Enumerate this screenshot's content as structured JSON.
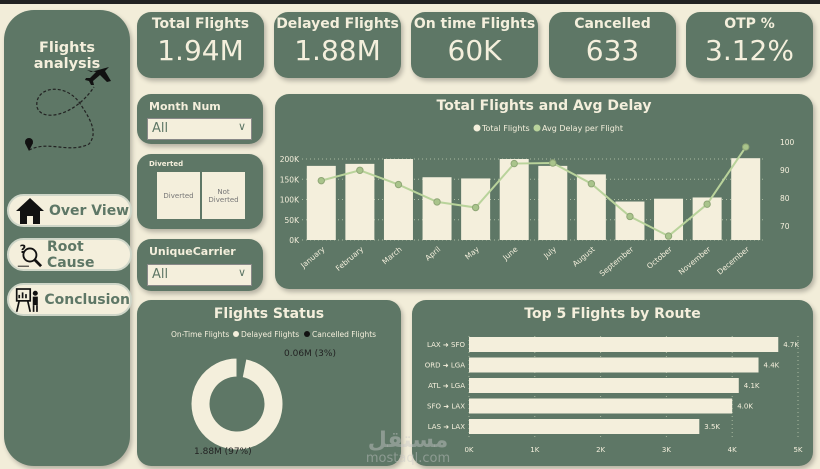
{
  "sidebar": {
    "title": "Flights analysis",
    "nav": [
      {
        "label": "Over View",
        "icon": "home-icon"
      },
      {
        "label": "Root Cause",
        "icon": "investigate-icon"
      },
      {
        "label": "Conclusion",
        "icon": "presentation-icon"
      }
    ]
  },
  "kpis": [
    {
      "label": "Total Flights",
      "value": "1.94M"
    },
    {
      "label": "Delayed Flights",
      "value": "1.88M"
    },
    {
      "label": "On time Flights",
      "value": "60K"
    },
    {
      "label": "Cancelled",
      "value": "633"
    },
    {
      "label": "OTP %",
      "value": "3.12%"
    }
  ],
  "slicers": {
    "month": {
      "label": "Month Num",
      "value": "All"
    },
    "diverted": {
      "label": "Diverted",
      "options": [
        "Diverted",
        "Not Diverted"
      ]
    },
    "carrier": {
      "label": "UniqueCarrier",
      "value": "All"
    }
  },
  "colors": {
    "panel": "#5e7766",
    "cream": "#f4efdc",
    "line": "#b9d39b",
    "background": "#f2edd9"
  },
  "chart_data": [
    {
      "type": "bar+line",
      "title": "Total Flights and Avg Delay",
      "legend": [
        "Total Flights",
        "Avg Delay per Flight"
      ],
      "legend_position": "top",
      "categories": [
        "January",
        "February",
        "March",
        "April",
        "May",
        "June",
        "July",
        "August",
        "September",
        "October",
        "November",
        "December"
      ],
      "series": [
        {
          "name": "Total Flights",
          "type": "bar",
          "axis": "left",
          "values": [
            183000,
            188000,
            200000,
            155000,
            152000,
            200000,
            183000,
            162000,
            95000,
            102000,
            105000,
            202000
          ]
        },
        {
          "name": "Avg Delay per Flight",
          "type": "line",
          "axis": "right",
          "values": [
            86.2,
            89.9,
            84.8,
            78.6,
            76.6,
            92.3,
            92.5,
            85.1,
            73.4,
            66.4,
            77.8,
            98.2
          ]
        }
      ],
      "yticks": [
        "0K",
        "50K",
        "100K",
        "150K",
        "200K"
      ],
      "ylim": [
        0,
        200000
      ],
      "y2ticks": [
        "70",
        "80",
        "90",
        "100"
      ],
      "y2lim": [
        65,
        100
      ],
      "grid": true
    },
    {
      "type": "pie",
      "title": "Flights Status",
      "legend": [
        "On-Time Flights",
        "Delayed Flights",
        "Cancelled Flights"
      ],
      "slices": [
        {
          "name": "On-Time Flights",
          "value": 0.06,
          "label": "0.06M (3%)"
        },
        {
          "name": "Delayed Flights",
          "value": 1.88,
          "label": "1.88M (97%)"
        }
      ]
    },
    {
      "type": "bar",
      "orientation": "horizontal",
      "title": "Top 5 Flights by Route",
      "categories": [
        "LAX ➜ SFO",
        "ORD ➜ LGA",
        "ATL ➜ LGA",
        "SFO ➜ LAX",
        "LAS ➜ LAX"
      ],
      "values": [
        4700,
        4400,
        4100,
        4000,
        3500
      ],
      "labels": [
        "4.7K",
        "4.4K",
        "4.1K",
        "4.0K",
        "3.5K"
      ],
      "xticks": [
        "0K",
        "1K",
        "2K",
        "3K",
        "4K",
        "5K"
      ],
      "xlim": [
        0,
        5000
      ]
    }
  ]
}
